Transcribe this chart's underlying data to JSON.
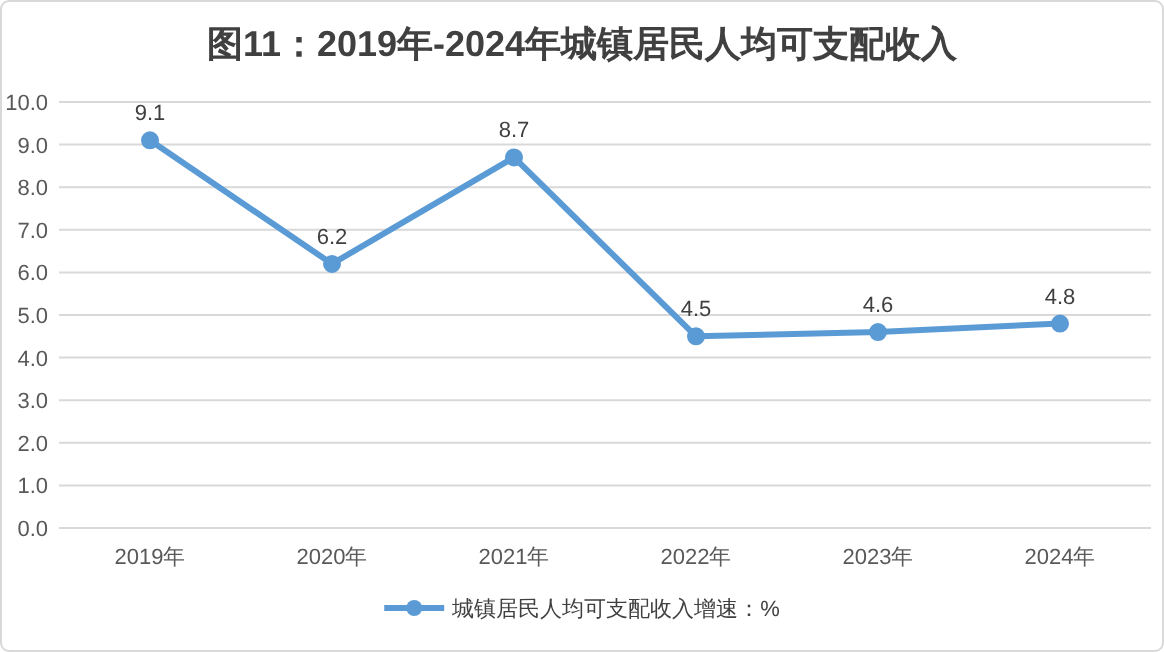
{
  "chart_data": {
    "type": "line",
    "title": "图11：2019年-2024年城镇居民人均可支配收入",
    "categories": [
      "2019年",
      "2020年",
      "2021年",
      "2022年",
      "2023年",
      "2024年"
    ],
    "series": [
      {
        "name": "城镇居民人均可支配收入增速：%",
        "color": "#5b9bd5",
        "values": [
          9.1,
          6.2,
          8.7,
          4.5,
          4.6,
          4.8
        ]
      }
    ],
    "ylim": [
      0,
      10
    ],
    "yticks": [
      {
        "value": 0,
        "label": "0.0"
      },
      {
        "value": 1,
        "label": "1.0"
      },
      {
        "value": 2,
        "label": "2.0"
      },
      {
        "value": 3,
        "label": "3.0"
      },
      {
        "value": 4,
        "label": "4.0"
      },
      {
        "value": 5,
        "label": "5.0"
      },
      {
        "value": 6,
        "label": "6.0"
      },
      {
        "value": 7,
        "label": "7.0"
      },
      {
        "value": 8,
        "label": "8.0"
      },
      {
        "value": 9,
        "label": "9.0"
      },
      {
        "value": 10,
        "label": "10.0"
      }
    ],
    "grid": "y",
    "legend": "bottom",
    "marker": "circle",
    "line_style": "solid",
    "data_labels": true
  }
}
